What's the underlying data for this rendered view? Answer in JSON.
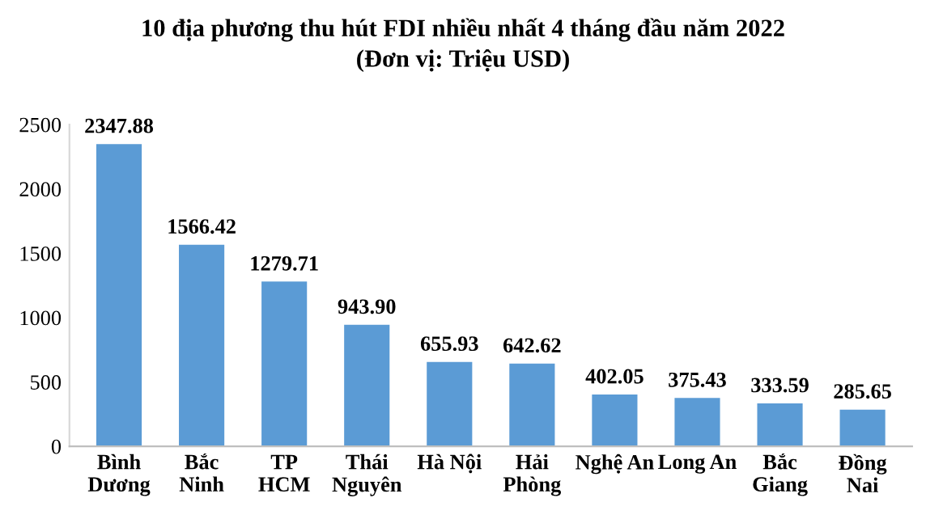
{
  "chart_data": {
    "type": "bar",
    "title": "10 địa phương thu hút FDI nhiều nhất 4 tháng đầu năm 2022",
    "subtitle": "(Đơn vị: Triệu USD)",
    "categories": [
      "Bình\nDương",
      "Bắc\nNinh",
      "TP\nHCM",
      "Thái\nNguyên",
      "Hà Nội",
      "Hải\nPhòng",
      "Nghệ An",
      "Long An",
      "Bắc\nGiang",
      "Đồng\nNai"
    ],
    "values": [
      2347.88,
      1566.42,
      1279.71,
      943.9,
      655.93,
      642.62,
      402.05,
      375.43,
      333.59,
      285.65
    ],
    "value_labels": [
      "2347.88",
      "1566.42",
      "1279.71",
      "943.90",
      "655.93",
      "642.62",
      "402.05",
      "375.43",
      "333.59",
      "285.65"
    ],
    "color": "#5b9bd5",
    "ylim": [
      0,
      2500
    ],
    "yticks": [
      0,
      500,
      1000,
      1500,
      2000,
      2500
    ],
    "grid": false,
    "legend": false
  }
}
